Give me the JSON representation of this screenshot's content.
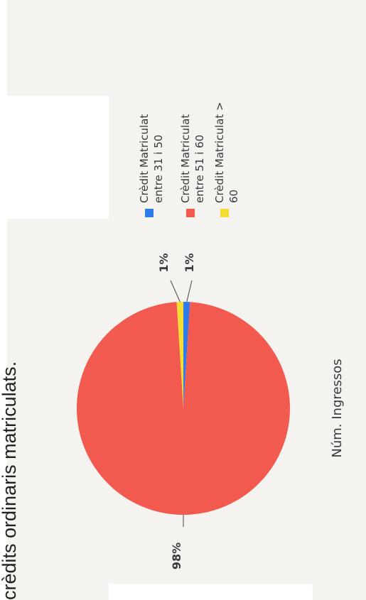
{
  "clipped_caption": "crèdits ordinaris matriculats.",
  "chart_data": {
    "type": "pie",
    "title": "",
    "xlabel": "Núm. Ingressos",
    "slices": [
      {
        "label": "Crèdit Matriculat entre 31 i 50",
        "value": 1,
        "data_label": "1%",
        "color": "#2f7bea"
      },
      {
        "label": "Crèdit Matriculat entre 51 i 60",
        "value": 98,
        "data_label": "98%",
        "color": "#f25a4f"
      },
      {
        "label": "Crèdit Matriculat > 60",
        "value": 1,
        "data_label": "1%",
        "color": "#f7dc33"
      }
    ],
    "legend": {
      "position": "right",
      "items": [
        {
          "lines": [
            "Crèdit Matriculat",
            "entre  31 i 50"
          ],
          "color": "#2f7bea"
        },
        {
          "lines": [
            "Crèdit Matriculat",
            "entre  51 i 60"
          ],
          "color": "#f25a4f"
        },
        {
          "lines": [
            "Crèdit Matriculat >",
            "60"
          ],
          "color": "#f7dc33"
        }
      ]
    }
  }
}
